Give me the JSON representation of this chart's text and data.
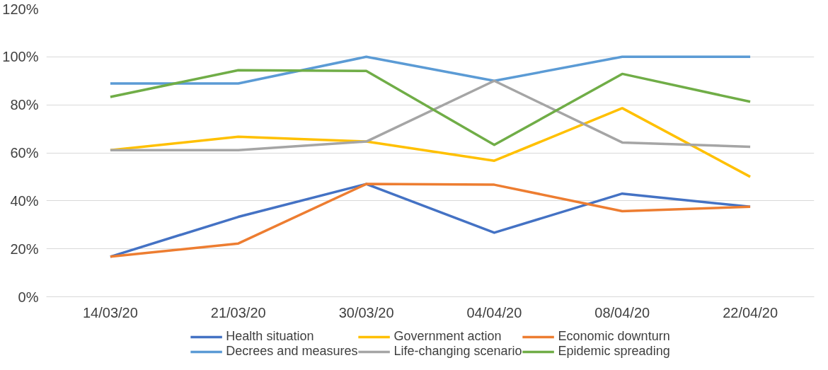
{
  "chart_data": {
    "type": "line",
    "categories": [
      "14/03/20",
      "21/03/20",
      "30/03/20",
      "04/04/20",
      "08/04/20",
      "22/04/20"
    ],
    "series": [
      {
        "name": "Health situation",
        "color": "#4472c4",
        "values": [
          16.7,
          33.3,
          47,
          26.7,
          43,
          37.5
        ]
      },
      {
        "name": "Government action",
        "color": "#ffc000",
        "values": [
          61.1,
          66.7,
          64.7,
          56.7,
          78.6,
          50
        ]
      },
      {
        "name": "Economic downturn",
        "color": "#ed7d31",
        "values": [
          16.7,
          22.2,
          47,
          46.7,
          35.7,
          37.5
        ]
      },
      {
        "name": "Decrees and measures",
        "color": "#5b9bd5",
        "values": [
          88.9,
          88.9,
          100,
          90,
          100,
          100
        ]
      },
      {
        "name": "Life-changing scenario",
        "color": "#a5a5a5",
        "values": [
          61.1,
          61.1,
          64.7,
          90,
          64.3,
          62.5
        ]
      },
      {
        "name": "Epidemic spreading",
        "color": "#70ad47",
        "values": [
          83.3,
          94.4,
          94.1,
          63.3,
          92.9,
          81.3
        ]
      }
    ],
    "ylim": [
      0,
      120
    ],
    "yticks": [
      {
        "value": 0,
        "label": "0%"
      },
      {
        "value": 20,
        "label": "20%"
      },
      {
        "value": 40,
        "label": "40%"
      },
      {
        "value": 60,
        "label": "60%"
      },
      {
        "value": 80,
        "label": "80%"
      },
      {
        "value": 100,
        "label": "100%"
      },
      {
        "value": 120,
        "label": "120%"
      }
    ],
    "grid": "y",
    "legend": "bottom",
    "marker": "none",
    "line_style": "solid"
  }
}
